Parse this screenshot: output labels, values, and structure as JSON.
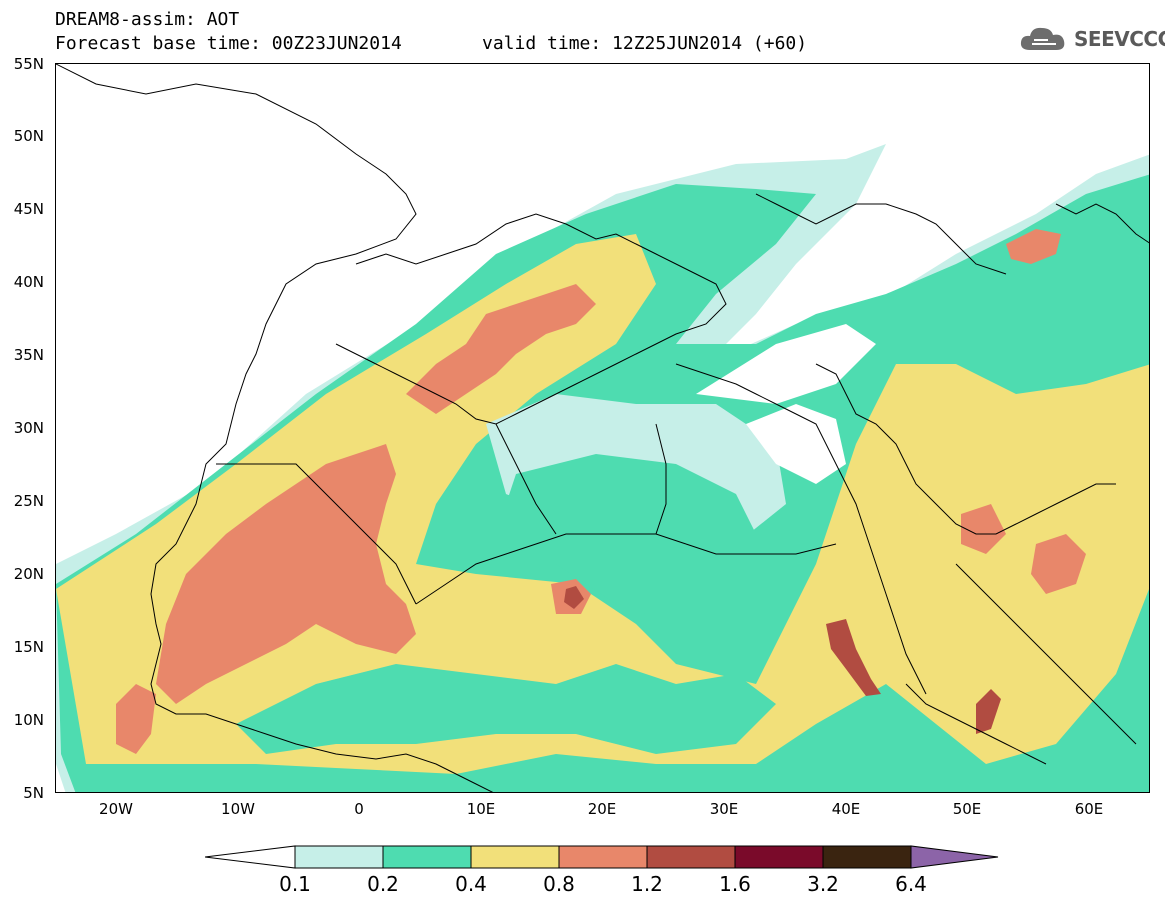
{
  "header": {
    "title": "DREAM8-assim: AOT",
    "base_time": "Forecast base time: 00Z23JUN2014",
    "valid_time": "valid time: 12Z25JUN2014 (+60)"
  },
  "logo": {
    "text": "SEEVCCC",
    "icon": "cloud-icon"
  },
  "axes": {
    "lat_labels": [
      "55N",
      "50N",
      "45N",
      "40N",
      "35N",
      "30N",
      "25N",
      "20N",
      "15N",
      "10N",
      "5N"
    ],
    "lon_labels": [
      "20W",
      "10W",
      "0",
      "10E",
      "20E",
      "30E",
      "40E",
      "50E",
      "60E"
    ],
    "lat_range": [
      5,
      55
    ],
    "lon_range": [
      -25,
      65
    ]
  },
  "legend": {
    "labels": [
      "0.1",
      "0.2",
      "0.4",
      "0.8",
      "1.2",
      "1.6",
      "3.2",
      "6.4"
    ],
    "colors": {
      "below": "#ffffff",
      "c01_02": "#c6efe8",
      "c02_04": "#4edcb0",
      "c04_08": "#f2e07a",
      "c08_12": "#e8876a",
      "c12_16": "#b14c41",
      "c16_32": "#7a0a2a",
      "c32_64": "#3a2410",
      "above": "#8c64a8"
    }
  }
}
